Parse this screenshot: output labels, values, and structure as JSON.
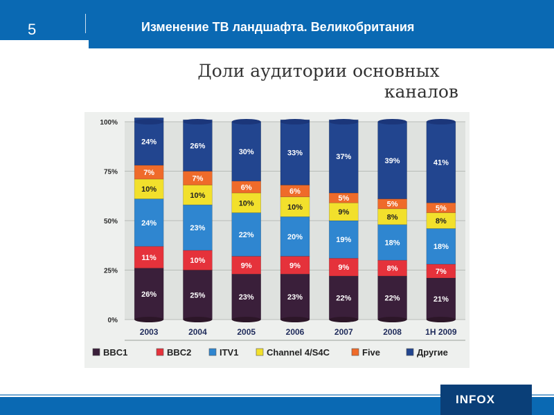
{
  "header": {
    "slide_number": "5",
    "title": "Изменение ТВ ландшафта. Великобритания"
  },
  "logo": {
    "text": "INFOX"
  },
  "colors": {
    "header_bg": "#0a69b3"
  },
  "chart_data": {
    "type": "bar",
    "stacked": true,
    "title_lines": [
      "Доли аудитории основных",
      "каналов"
    ],
    "categories": [
      "2003",
      "2004",
      "2005",
      "2006",
      "2007",
      "2008",
      "1H 2009"
    ],
    "y_ticks": [
      "0%",
      "25%",
      "50%",
      "75%",
      "100%"
    ],
    "ylim": [
      0,
      100
    ],
    "series": [
      {
        "name": "BBC1",
        "color": "#3a1f3a",
        "values": [
          26,
          25,
          23,
          23,
          22,
          22,
          21
        ],
        "labels": [
          "26%",
          "25%",
          "23%",
          "23%",
          "22%",
          "22%",
          "21%"
        ]
      },
      {
        "name": "BBC2",
        "color": "#e5323b",
        "values": [
          11,
          10,
          9,
          9,
          9,
          8,
          7
        ],
        "labels": [
          "11%",
          "10%",
          "9%",
          "9%",
          "9%",
          "8%",
          "7%"
        ]
      },
      {
        "name": "ITV1",
        "color": "#2f86d0",
        "values": [
          24,
          23,
          22,
          20,
          19,
          18,
          18
        ],
        "labels": [
          "24%",
          "23%",
          "22%",
          "20%",
          "19%",
          "18%",
          "18%"
        ]
      },
      {
        "name": "Channel 4/S4C",
        "color": "#f2e02c",
        "values": [
          10,
          10,
          10,
          10,
          9,
          8,
          8
        ],
        "labels": [
          "10%",
          "10%",
          "10%",
          "10%",
          "9%",
          "8%",
          "8%"
        ]
      },
      {
        "name": "Five",
        "color": "#ef6b2a",
        "values": [
          7,
          7,
          6,
          6,
          5,
          5,
          5
        ],
        "labels": [
          "7%",
          "7%",
          "6%",
          "6%",
          "5%",
          "5%",
          "5%"
        ]
      },
      {
        "name": "Другие",
        "color": "#22458f",
        "values": [
          24,
          26,
          30,
          33,
          37,
          39,
          41
        ],
        "labels": [
          "24%",
          "26%",
          "30%",
          "33%",
          "37%",
          "39%",
          "41%"
        ]
      }
    ],
    "legend_position": "bottom",
    "grid": true
  }
}
